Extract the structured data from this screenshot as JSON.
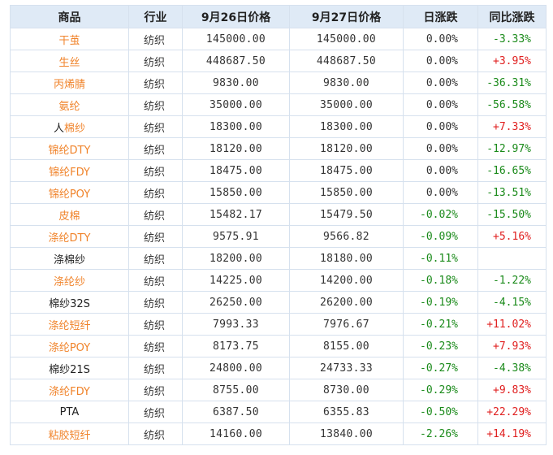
{
  "header": {
    "name": "商品",
    "industry": "行业",
    "price1": "9月26日价格",
    "price2": "9月27日价格",
    "day_change": "日涨跌",
    "yoy_change": "同比涨跌"
  },
  "rows": [
    {
      "name": "干茧",
      "name_color": "orange",
      "industry": "纺织",
      "p1": "145000.00",
      "p2": "145000.00",
      "day": "0.00%",
      "day_sign": "zero",
      "yoy": "-3.33%",
      "yoy_sign": "neg"
    },
    {
      "name": "生丝",
      "name_color": "orange",
      "industry": "纺织",
      "p1": "448687.50",
      "p2": "448687.50",
      "day": "0.00%",
      "day_sign": "zero",
      "yoy": "+3.95%",
      "yoy_sign": "pos"
    },
    {
      "name": "丙烯腈",
      "name_color": "orange",
      "industry": "纺织",
      "p1": "9830.00",
      "p2": "9830.00",
      "day": "0.00%",
      "day_sign": "zero",
      "yoy": "-36.31%",
      "yoy_sign": "neg"
    },
    {
      "name": "氨纶",
      "name_color": "orange",
      "industry": "纺织",
      "p1": "35000.00",
      "p2": "35000.00",
      "day": "0.00%",
      "day_sign": "zero",
      "yoy": "-56.58%",
      "yoy_sign": "neg"
    },
    {
      "name_pre": "人",
      "name_hl": "棉纱",
      "name_color": "mixed",
      "industry": "纺织",
      "p1": "18300.00",
      "p2": "18300.00",
      "day": "0.00%",
      "day_sign": "zero",
      "yoy": "+7.33%",
      "yoy_sign": "pos"
    },
    {
      "name": "锦纶DTY",
      "name_color": "orange",
      "industry": "纺织",
      "p1": "18120.00",
      "p2": "18120.00",
      "day": "0.00%",
      "day_sign": "zero",
      "yoy": "-12.97%",
      "yoy_sign": "neg"
    },
    {
      "name": "锦纶FDY",
      "name_color": "orange",
      "industry": "纺织",
      "p1": "18475.00",
      "p2": "18475.00",
      "day": "0.00%",
      "day_sign": "zero",
      "yoy": "-16.65%",
      "yoy_sign": "neg"
    },
    {
      "name": "锦纶POY",
      "name_color": "orange",
      "industry": "纺织",
      "p1": "15850.00",
      "p2": "15850.00",
      "day": "0.00%",
      "day_sign": "zero",
      "yoy": "-13.51%",
      "yoy_sign": "neg"
    },
    {
      "name": "皮棉",
      "name_color": "orange",
      "industry": "纺织",
      "p1": "15482.17",
      "p2": "15479.50",
      "day": "-0.02%",
      "day_sign": "neg",
      "yoy": "-15.50%",
      "yoy_sign": "neg"
    },
    {
      "name": "涤纶DTY",
      "name_color": "orange",
      "industry": "纺织",
      "p1": "9575.91",
      "p2": "9566.82",
      "day": "-0.09%",
      "day_sign": "neg",
      "yoy": "+5.16%",
      "yoy_sign": "pos"
    },
    {
      "name": "涤棉纱",
      "name_color": "black",
      "industry": "纺织",
      "p1": "18200.00",
      "p2": "18180.00",
      "day": "-0.11%",
      "day_sign": "neg",
      "yoy": "",
      "yoy_sign": "zero"
    },
    {
      "name": "涤纶纱",
      "name_color": "orange",
      "industry": "纺织",
      "p1": "14225.00",
      "p2": "14200.00",
      "day": "-0.18%",
      "day_sign": "neg",
      "yoy": "-1.22%",
      "yoy_sign": "neg"
    },
    {
      "name": "棉纱32S",
      "name_color": "black",
      "industry": "纺织",
      "p1": "26250.00",
      "p2": "26200.00",
      "day": "-0.19%",
      "day_sign": "neg",
      "yoy": "-4.15%",
      "yoy_sign": "neg"
    },
    {
      "name": "涤纶短纤",
      "name_color": "orange",
      "industry": "纺织",
      "p1": "7993.33",
      "p2": "7976.67",
      "day": "-0.21%",
      "day_sign": "neg",
      "yoy": "+11.02%",
      "yoy_sign": "pos"
    },
    {
      "name": "涤纶POY",
      "name_color": "orange",
      "industry": "纺织",
      "p1": "8173.75",
      "p2": "8155.00",
      "day": "-0.23%",
      "day_sign": "neg",
      "yoy": "+7.93%",
      "yoy_sign": "pos"
    },
    {
      "name": "棉纱21S",
      "name_color": "black",
      "industry": "纺织",
      "p1": "24800.00",
      "p2": "24733.33",
      "day": "-0.27%",
      "day_sign": "neg",
      "yoy": "-4.38%",
      "yoy_sign": "neg"
    },
    {
      "name": "涤纶FDY",
      "name_color": "orange",
      "industry": "纺织",
      "p1": "8755.00",
      "p2": "8730.00",
      "day": "-0.29%",
      "day_sign": "neg",
      "yoy": "+9.83%",
      "yoy_sign": "pos"
    },
    {
      "name": "PTA",
      "name_color": "black",
      "industry": "纺织",
      "p1": "6387.50",
      "p2": "6355.83",
      "day": "-0.50%",
      "day_sign": "neg",
      "yoy": "+22.29%",
      "yoy_sign": "pos"
    },
    {
      "name": "粘胶短纤",
      "name_color": "orange",
      "industry": "纺织",
      "p1": "14160.00",
      "p2": "13840.00",
      "day": "-2.26%",
      "day_sign": "neg",
      "yoy": "+14.19%",
      "yoy_sign": "pos"
    }
  ],
  "colors": {
    "link_orange": "#f0832a",
    "header_bg": "#dfeaf6",
    "border": "#d6e1ee",
    "positive": "#e02020",
    "negative": "#1a8a1a"
  }
}
